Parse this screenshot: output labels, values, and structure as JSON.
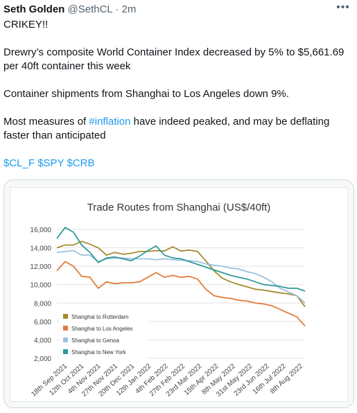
{
  "tweet": {
    "author_name": "Seth Golden",
    "handle": "@SethCL",
    "separator": "·",
    "time": "2m",
    "more_icon": "more-horizontal-icon",
    "paragraphs": [
      "CRIKEY!!",
      "Drewry’s composite World Container Index decreased by 5% to $5,661.69 per 40ft container this week",
      "Container shipments from Shanghai to Los Angeles down 9%."
    ],
    "p4_before": "Most measures of ",
    "p4_hashtag": "#inflation",
    "p4_after": " have indeed peaked, and may be deflating faster than anticipated",
    "cashtags": [
      "$CL_F",
      "$SPY",
      "$CRB"
    ]
  },
  "colors": {
    "text": "#0f1419",
    "muted": "#536471",
    "link": "#1d9bf0",
    "rotterdam": "#a58a2f",
    "los_angeles": "#e07b39",
    "genoa": "#9cc1e0",
    "new_york": "#2f9a9a"
  },
  "chart_data": {
    "type": "line",
    "title": "Trade Routes from Shanghai (US$/40ft)",
    "xlabel": "",
    "ylabel": "",
    "ylim": [
      2000,
      16000
    ],
    "yticks": [
      2000,
      4000,
      6000,
      8000,
      10000,
      12000,
      14000,
      16000
    ],
    "ytick_labels": [
      "2,000",
      "4,000",
      "6,000",
      "8,000",
      "10,000",
      "12,000",
      "14,000",
      "16,000"
    ],
    "x_labels": [
      "18th Sep 2021",
      "12th Oct 2021",
      "4th Nov 2021",
      "27th Nov 2021",
      "20th Dec 2021",
      "12th Jan 2022",
      "4th Feb 2022",
      "27th Feb 2022",
      "23rd Mar 2022",
      "15th Apr 2022",
      "8th May 2022",
      "31st May 2022",
      "23rd Jun 2022",
      "16th Jul 2022",
      "8th Aug 2022"
    ],
    "grid": true,
    "legend_position": "bottom-left",
    "series": [
      {
        "name": "Shanghai to Rotterdam",
        "color": "#a58a2f",
        "values": [
          14000,
          14300,
          14300,
          14700,
          14400,
          14000,
          13200,
          13500,
          13300,
          13400,
          13600,
          13600,
          13700,
          13650,
          14100,
          13650,
          13750,
          13600,
          12600,
          11500,
          10700,
          10300,
          10000,
          9750,
          9500,
          9400,
          9250,
          9100,
          9000,
          8800,
          7600
        ]
      },
      {
        "name": "Shanghai to Los Angeles",
        "color": "#e07b39",
        "values": [
          11500,
          12500,
          12000,
          10900,
          10800,
          9600,
          10300,
          10100,
          10200,
          10200,
          10300,
          10800,
          11300,
          10800,
          11000,
          10800,
          10900,
          10600,
          9500,
          8800,
          8600,
          8500,
          8300,
          8200,
          8000,
          7900,
          7700,
          7300,
          6900,
          6500,
          5500
        ]
      },
      {
        "name": "Shanghai to Genoa",
        "color": "#9cc1e0",
        "values": [
          13500,
          13600,
          13700,
          13200,
          13200,
          12500,
          12800,
          12900,
          12900,
          12800,
          12800,
          12800,
          12700,
          12800,
          12700,
          12650,
          12600,
          12500,
          12250,
          12100,
          12000,
          11800,
          11700,
          11400,
          11200,
          10800,
          10300,
          9600,
          9200,
          8800,
          8000
        ]
      },
      {
        "name": "Shanghai to New York",
        "color": "#2f9a9a",
        "values": [
          15000,
          16200,
          15700,
          14300,
          13500,
          12400,
          12900,
          13000,
          12800,
          12600,
          13100,
          13700,
          14200,
          13200,
          12900,
          12800,
          12500,
          12200,
          11900,
          11600,
          11300,
          11000,
          10800,
          10600,
          10300,
          10000,
          9900,
          9800,
          9600,
          9600,
          9300
        ]
      }
    ]
  }
}
